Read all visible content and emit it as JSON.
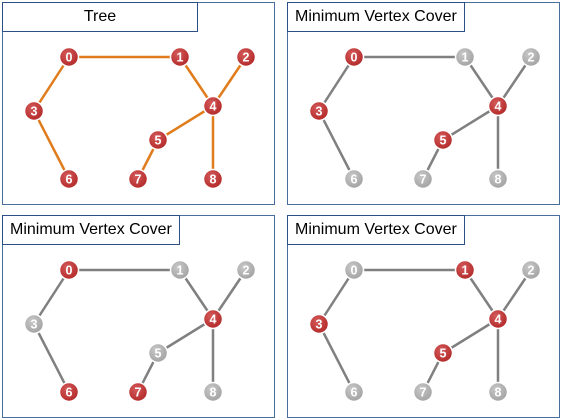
{
  "colors": {
    "red_node": "#b42a2a",
    "gray_node": "#a3a3a3",
    "orange_edge": "#e07c1c",
    "gray_edge": "#808080",
    "panel_border": "#4a6e9c"
  },
  "panels": [
    {
      "title": "Tree",
      "edge_color": "orange",
      "red_nodes": [
        "0",
        "1",
        "2",
        "3",
        "4",
        "5",
        "6",
        "7",
        "8"
      ]
    },
    {
      "title": "Minimum Vertex Cover",
      "edge_color": "gray",
      "red_nodes": [
        "0",
        "3",
        "4",
        "5"
      ]
    },
    {
      "title": "Minimum Vertex Cover",
      "edge_color": "gray",
      "red_nodes": [
        "0",
        "4",
        "6",
        "7"
      ]
    },
    {
      "title": "Minimum Vertex Cover",
      "edge_color": "gray",
      "red_nodes": [
        "1",
        "3",
        "4",
        "5"
      ]
    }
  ],
  "graph": {
    "nodes": [
      "0",
      "1",
      "2",
      "3",
      "4",
      "5",
      "6",
      "7",
      "8"
    ],
    "edges": [
      [
        "0",
        "1"
      ],
      [
        "0",
        "3"
      ],
      [
        "3",
        "6"
      ],
      [
        "1",
        "4"
      ],
      [
        "2",
        "4"
      ],
      [
        "4",
        "5"
      ],
      [
        "4",
        "8"
      ],
      [
        "5",
        "7"
      ]
    ]
  }
}
